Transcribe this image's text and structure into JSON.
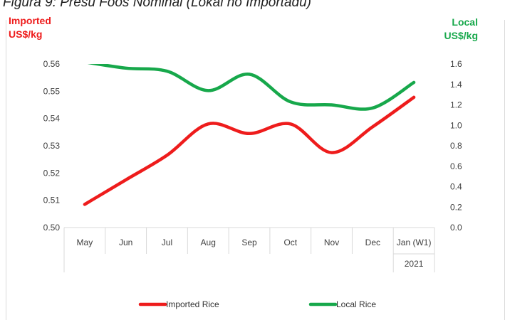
{
  "caption": "Figura 9: Presu Foos Nominal (Lokal no Importadu)",
  "colors": {
    "imported": "#ee1c1c",
    "local": "#17a84b",
    "gridline": "#d9d9d9",
    "tick_text": "#404040"
  },
  "chart_data": {
    "type": "line",
    "title": "",
    "categories": [
      "May",
      "Jun",
      "Jul",
      "Aug",
      "Sep",
      "Oct",
      "Nov",
      "Dec",
      "Jan (W1)"
    ],
    "category_group": {
      "label": "2021",
      "start_index": 8
    },
    "y_left": {
      "title_line1": "Imported",
      "title_line2": "US$/kg",
      "color": "#ee1c1c",
      "min": 0.5,
      "max": 0.56,
      "ticks": [
        "0.50",
        "0.51",
        "0.52",
        "0.53",
        "0.54",
        "0.55",
        "0.56"
      ]
    },
    "y_right": {
      "title_line1": "Local",
      "title_line2": "US$/kg",
      "color": "#17a84b",
      "min": 0.0,
      "max": 1.6,
      "ticks": [
        "0.0",
        "0.2",
        "0.4",
        "0.6",
        "0.8",
        "1.0",
        "1.2",
        "1.4",
        "1.6"
      ]
    },
    "series": [
      {
        "name": "Imported Rice",
        "axis": "left",
        "color": "#ee1c1c",
        "values": [
          0.5085,
          0.5175,
          0.5265,
          0.538,
          0.5345,
          0.538,
          0.5275,
          0.537,
          0.5478
        ]
      },
      {
        "name": "Local Rice",
        "axis": "right",
        "color": "#17a84b",
        "values": [
          1.62,
          1.56,
          1.53,
          1.34,
          1.5,
          1.23,
          1.2,
          1.17,
          1.42
        ]
      }
    ],
    "grid": false,
    "legend": "bottom"
  }
}
